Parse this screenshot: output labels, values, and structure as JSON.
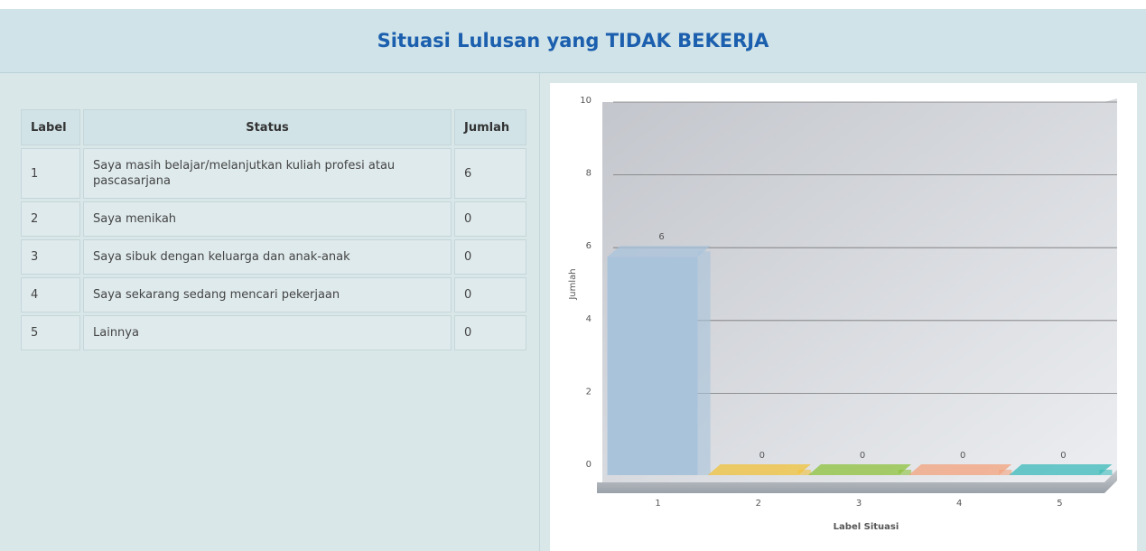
{
  "header": {
    "title": "Situasi Lulusan yang TIDAK BEKERJA"
  },
  "table": {
    "columns": [
      "Label",
      "Status",
      "Jumlah"
    ],
    "rows": [
      [
        "1",
        "Saya masih belajar/melanjutkan kuliah profesi atau pascasarjana",
        "6"
      ],
      [
        "2",
        "Saya menikah",
        "0"
      ],
      [
        "3",
        "Saya sibuk dengan keluarga dan anak-anak",
        "0"
      ],
      [
        "4",
        "Saya sekarang sedang mencari pekerjaan",
        "0"
      ],
      [
        "5",
        "Lainnya",
        "0"
      ]
    ]
  },
  "chart_data": {
    "type": "bar",
    "xlabel": "Label Situasi",
    "ylabel": "Jumlah",
    "categories": [
      "1",
      "2",
      "3",
      "4",
      "5"
    ],
    "values": [
      6,
      0,
      0,
      0,
      0
    ],
    "colors": [
      "#a9c3db",
      "#f0c23a",
      "#8dc23c",
      "#f3a27c",
      "#3bbaba"
    ],
    "ylim": [
      0,
      10
    ],
    "yticks": [
      0,
      2,
      4,
      6,
      8,
      10
    ],
    "grid": true
  }
}
